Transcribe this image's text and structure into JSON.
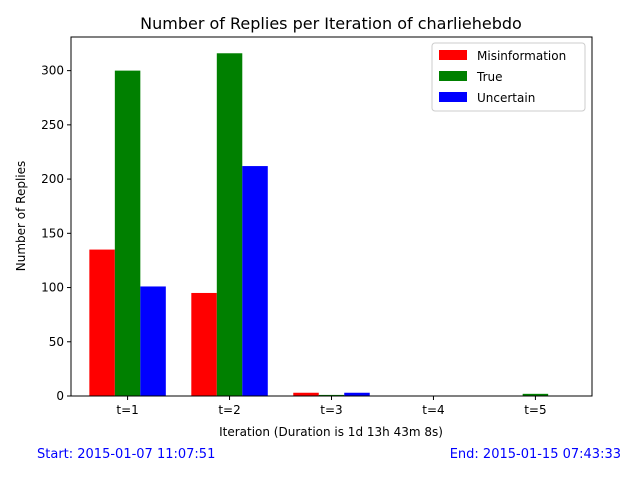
{
  "footer": {
    "start": "Start: 2015-01-07 11:07:51",
    "end": "End: 2015-01-15 07:43:33",
    "color": "#0000ff"
  },
  "chart_data": {
    "type": "bar",
    "title": "Number of Replies per Iteration of charliehebdo",
    "xlabel": "Iteration (Duration is 1d 13h 43m 8s)",
    "ylabel": "Number of Replies",
    "categories": [
      "t=1",
      "t=2",
      "t=3",
      "t=4",
      "t=5"
    ],
    "series": [
      {
        "name": "Misinformation",
        "color": "#ff0000",
        "values": [
          135,
          95,
          3,
          0,
          0
        ]
      },
      {
        "name": "True",
        "color": "#008000",
        "values": [
          300,
          316,
          1,
          0,
          2
        ]
      },
      {
        "name": "Uncertain",
        "color": "#0000ff",
        "values": [
          101,
          212,
          3,
          0,
          0
        ]
      }
    ],
    "ylim": [
      0,
      331
    ],
    "yticks": [
      0,
      50,
      100,
      150,
      200,
      250,
      300
    ],
    "legend": "top-right",
    "grid": false
  }
}
